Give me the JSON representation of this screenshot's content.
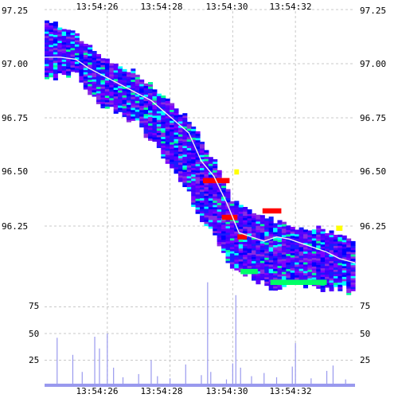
{
  "chart_data": {
    "type": "heatmap",
    "subtype": "order-book depth heatmap with traded-price line and volume histogram",
    "title": "",
    "xlabel": "",
    "ylabel": "",
    "x_ticks": [
      "13:54:26",
      "13:54:28",
      "13:54:30",
      "13:54:32"
    ],
    "x_tick_seconds": [
      26,
      28,
      30,
      32
    ],
    "xlim_seconds": [
      24.0,
      33.9
    ],
    "price_panel": {
      "ylim": [
        96.0,
        97.25
      ],
      "y_ticks": [
        "97.25",
        "97.00",
        "96.75",
        "96.50",
        "96.25"
      ],
      "y_tick_values": [
        97.25,
        97.0,
        96.75,
        96.5,
        96.25
      ],
      "grid": true,
      "colorscale": [
        "#0000ff",
        "#7f00ff",
        "#00ffff",
        "#00ff66",
        "#ffff00",
        "#ff0000"
      ],
      "band": [
        {
          "t": 24.0,
          "hi": 97.2,
          "lo": 96.95
        },
        {
          "t": 25.0,
          "hi": 97.14,
          "lo": 96.98
        },
        {
          "t": 25.5,
          "hi": 97.06,
          "lo": 96.86
        },
        {
          "t": 26.5,
          "hi": 96.98,
          "lo": 96.78
        },
        {
          "t": 27.0,
          "hi": 96.94,
          "lo": 96.74
        },
        {
          "t": 28.0,
          "hi": 96.82,
          "lo": 96.55
        },
        {
          "t": 28.5,
          "hi": 96.75,
          "lo": 96.45
        },
        {
          "t": 29.0,
          "hi": 96.65,
          "lo": 96.3
        },
        {
          "t": 29.5,
          "hi": 96.52,
          "lo": 96.22
        },
        {
          "t": 30.0,
          "hi": 96.36,
          "lo": 96.06
        },
        {
          "t": 30.5,
          "hi": 96.33,
          "lo": 96.04
        },
        {
          "t": 31.0,
          "hi": 96.28,
          "lo": 96.0
        },
        {
          "t": 31.5,
          "hi": 96.26,
          "lo": 95.98
        },
        {
          "t": 32.0,
          "hi": 96.24,
          "lo": 96.0
        },
        {
          "t": 32.5,
          "hi": 96.24,
          "lo": 96.0
        },
        {
          "t": 33.0,
          "hi": 96.22,
          "lo": 95.98
        },
        {
          "t": 33.5,
          "hi": 96.2,
          "lo": 95.98
        },
        {
          "t": 33.9,
          "hi": 96.18,
          "lo": 95.96
        }
      ],
      "price_line": [
        {
          "t": 24.0,
          "p": 97.03
        },
        {
          "t": 24.5,
          "p": 97.03
        },
        {
          "t": 25.0,
          "p": 97.02
        },
        {
          "t": 25.4,
          "p": 96.98
        },
        {
          "t": 25.8,
          "p": 96.95
        },
        {
          "t": 26.2,
          "p": 96.92
        },
        {
          "t": 26.6,
          "p": 96.89
        },
        {
          "t": 27.0,
          "p": 96.86
        },
        {
          "t": 27.4,
          "p": 96.83
        },
        {
          "t": 27.8,
          "p": 96.78
        },
        {
          "t": 28.2,
          "p": 96.73
        },
        {
          "t": 28.6,
          "p": 96.68
        },
        {
          "t": 29.0,
          "p": 96.55
        },
        {
          "t": 29.4,
          "p": 96.48
        },
        {
          "t": 29.8,
          "p": 96.36
        },
        {
          "t": 30.2,
          "p": 96.22
        },
        {
          "t": 30.6,
          "p": 96.2
        },
        {
          "t": 31.0,
          "p": 96.18
        },
        {
          "t": 31.4,
          "p": 96.2
        },
        {
          "t": 31.8,
          "p": 96.19
        },
        {
          "t": 32.2,
          "p": 96.17
        },
        {
          "t": 32.6,
          "p": 96.15
        },
        {
          "t": 33.0,
          "p": 96.13
        },
        {
          "t": 33.4,
          "p": 96.1
        },
        {
          "t": 33.9,
          "p": 96.08
        }
      ],
      "hotspots": [
        {
          "t0": 29.05,
          "t1": 29.9,
          "p": 96.46,
          "color": "#ff0000"
        },
        {
          "t0": 29.65,
          "t1": 30.15,
          "p": 96.29,
          "color": "#ff0000"
        },
        {
          "t0": 30.95,
          "t1": 31.55,
          "p": 96.32,
          "color": "#ff0000"
        },
        {
          "t0": 30.15,
          "t1": 30.45,
          "p": 96.2,
          "color": "#ff0000"
        },
        {
          "t0": 30.05,
          "t1": 30.2,
          "p": 96.5,
          "color": "#ffff00"
        },
        {
          "t0": 33.3,
          "t1": 33.5,
          "p": 96.24,
          "color": "#ffff00"
        },
        {
          "t0": 30.25,
          "t1": 30.8,
          "p": 96.04,
          "color": "#00ff66"
        },
        {
          "t0": 31.2,
          "t1": 33.0,
          "p": 95.99,
          "color": "#00ff66"
        }
      ]
    },
    "volume_panel": {
      "ylim": [
        0,
        100
      ],
      "y_ticks": [
        "75",
        "50",
        "25"
      ],
      "y_tick_values": [
        75,
        50,
        25
      ],
      "color": "#9999ee",
      "spikes": [
        {
          "t": 24.4,
          "v": 46
        },
        {
          "t": 24.9,
          "v": 30
        },
        {
          "t": 25.2,
          "v": 14
        },
        {
          "t": 25.6,
          "v": 47
        },
        {
          "t": 25.75,
          "v": 36
        },
        {
          "t": 26.0,
          "v": 50
        },
        {
          "t": 26.2,
          "v": 18
        },
        {
          "t": 26.5,
          "v": 9
        },
        {
          "t": 27.0,
          "v": 12
        },
        {
          "t": 27.4,
          "v": 25
        },
        {
          "t": 27.6,
          "v": 10
        },
        {
          "t": 28.0,
          "v": 8
        },
        {
          "t": 28.5,
          "v": 21
        },
        {
          "t": 29.0,
          "v": 11
        },
        {
          "t": 29.2,
          "v": 98
        },
        {
          "t": 29.3,
          "v": 14
        },
        {
          "t": 29.8,
          "v": 7
        },
        {
          "t": 30.0,
          "v": 22
        },
        {
          "t": 30.1,
          "v": 86
        },
        {
          "t": 30.25,
          "v": 18
        },
        {
          "t": 30.6,
          "v": 10
        },
        {
          "t": 31.0,
          "v": 13
        },
        {
          "t": 31.4,
          "v": 9
        },
        {
          "t": 31.9,
          "v": 19
        },
        {
          "t": 32.0,
          "v": 41
        },
        {
          "t": 32.5,
          "v": 8
        },
        {
          "t": 33.0,
          "v": 15
        },
        {
          "t": 33.2,
          "v": 20
        },
        {
          "t": 33.6,
          "v": 7
        }
      ]
    }
  }
}
